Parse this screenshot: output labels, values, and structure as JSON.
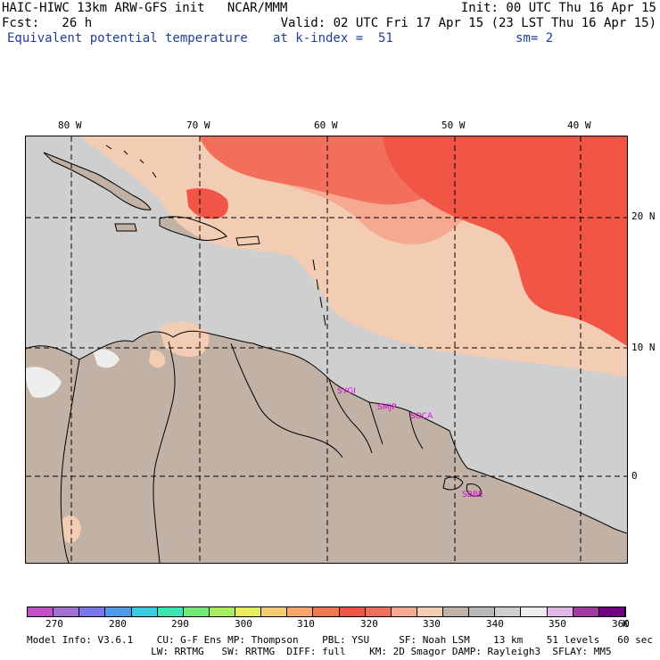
{
  "header": {
    "line1_left": "HAIC-HIWC 13km ARW-GFS init   NCAR/MMM",
    "line1_right": "Init: 00 UTC Thu 16 Apr 15",
    "line2_left": "Fcst:   26 h",
    "line2_right": "Valid: 02 UTC Fri 17 Apr 15 (23 LST Thu 16 Apr 15)",
    "field": "Equivalent potential temperature",
    "level": "at k-index =  51",
    "smooth": "sm= 2"
  },
  "map": {
    "lon_labels": [
      "80 W",
      "70 W",
      "60 W",
      "50 W",
      "40 W"
    ],
    "lat_labels": [
      "20 N",
      "10 N",
      "0"
    ],
    "stations": [
      "SYGI",
      "SMJP",
      "SOCA",
      "SBBE"
    ],
    "colors": {
      "land": "#c2b2a6",
      "ocean": "#cfcfcf",
      "t340": "#f3cdb3",
      "t335": "#f6a890",
      "t330": "#f26f5c",
      "t325": "#f05545",
      "t360": "#eeeeee"
    }
  },
  "colorbar": {
    "colors": [
      "#c24fc7",
      "#a070d0",
      "#7a78e8",
      "#4f9ae8",
      "#3ccbe0",
      "#3be6b0",
      "#70ea78",
      "#a8ee60",
      "#e6ee60",
      "#f5cc70",
      "#f9a66a",
      "#f07850",
      "#f05545",
      "#f26f5c",
      "#f6a890",
      "#f3cdb3",
      "#c2b2a6",
      "#b8b8b8",
      "#cfcfcf",
      "#eeeeee",
      "#e0b8e8",
      "#a03aa0",
      "#700080"
    ],
    "labels": [
      "270",
      "280",
      "290",
      "300",
      "310",
      "320",
      "330",
      "340",
      "350",
      "360"
    ],
    "unit": "K"
  },
  "footer": {
    "line1": "Model Info: V3.6.1    CU: G-F Ens MP: Thompson    PBL: YSU     SF: Noah LSM    13 km    51 levels   60 sec",
    "line2": "                     LW: RRTMG   SW: RRTMG  DIFF: full    KM: 2D Smagor DAMP: Rayleigh3  SFLAY: MM5"
  }
}
